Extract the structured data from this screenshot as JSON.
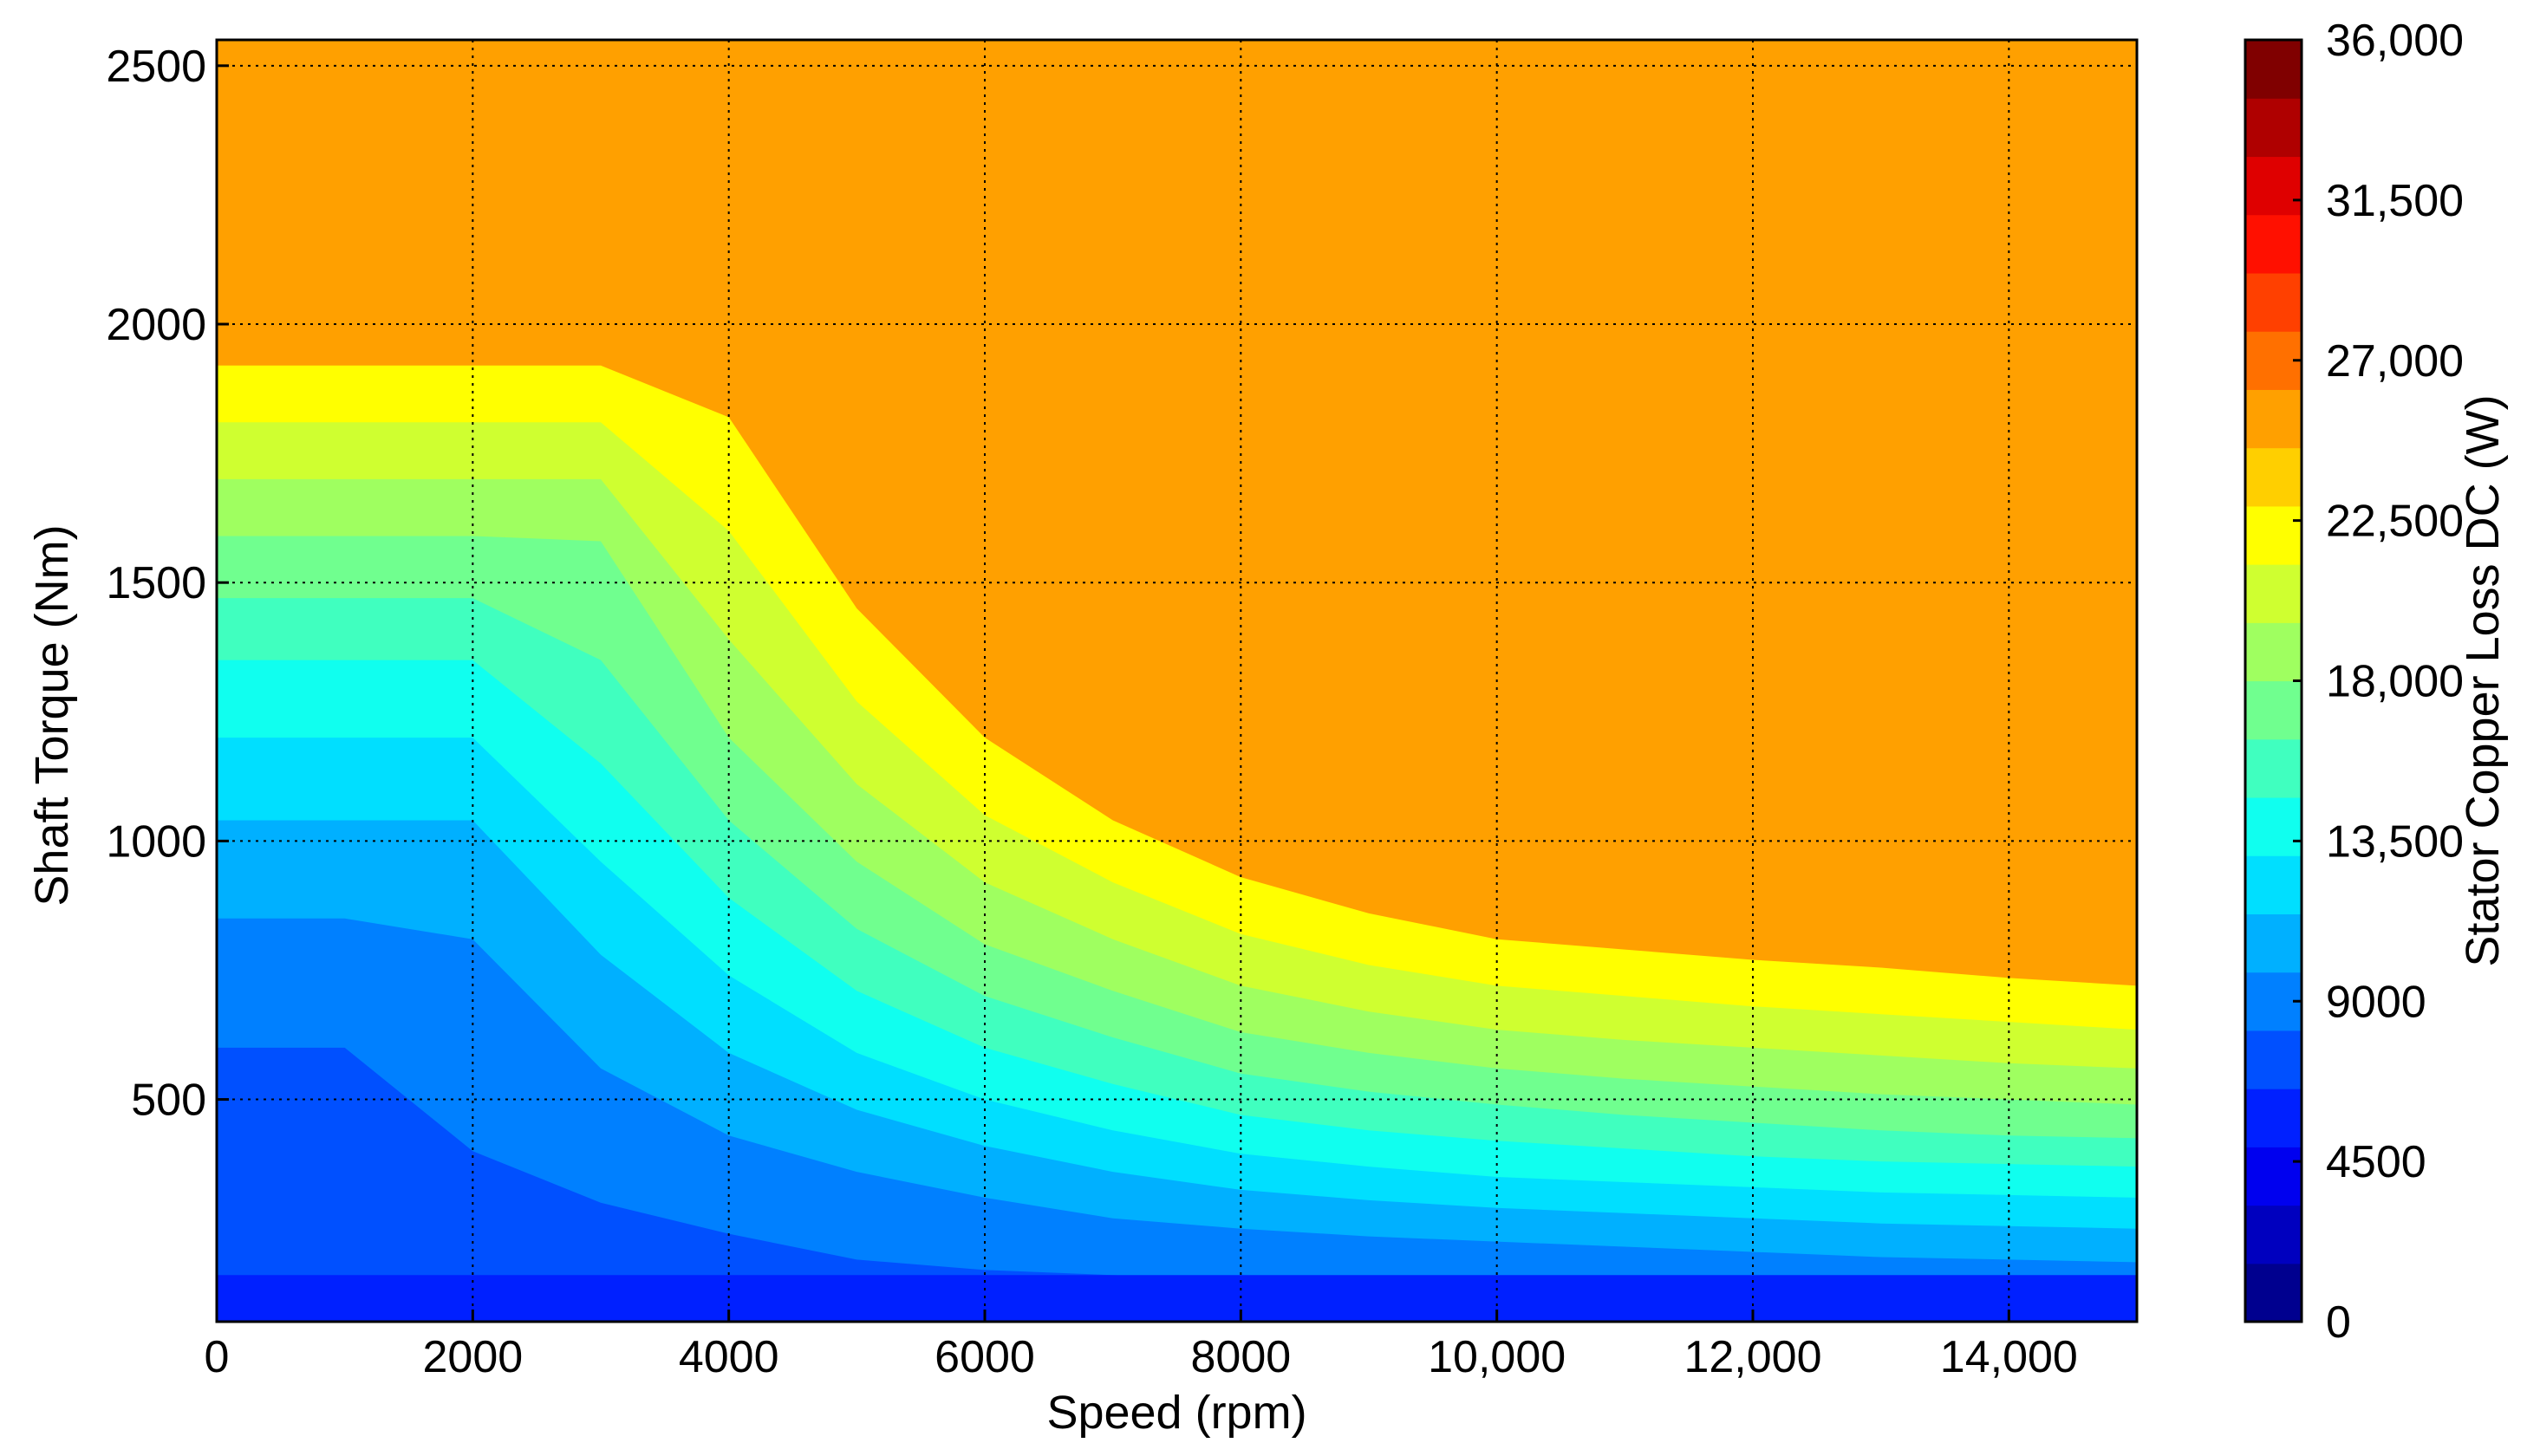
{
  "chart_data": {
    "type": "heatmap",
    "subtype": "filled-contour",
    "title": "",
    "xlabel": "Speed  (rpm)",
    "ylabel": "Shaft Torque  (Nm)",
    "xlim": [
      0,
      15000
    ],
    "ylim": [
      70,
      2550
    ],
    "xticks": [
      0,
      2000,
      4000,
      6000,
      8000,
      10000,
      12000,
      14000
    ],
    "xtick_labels": [
      "0",
      "2000",
      "4000",
      "6000",
      "8000",
      "10,000",
      "12,000",
      "14,000"
    ],
    "yticks": [
      500,
      1000,
      1500,
      2000,
      2500
    ],
    "ytick_labels": [
      "500",
      "1000",
      "1500",
      "2000",
      "2500"
    ],
    "grid": "dotted",
    "colormap": "jet",
    "colorbar": {
      "label": "Stator Copper Loss DC (W)",
      "min": 0,
      "max": 36000,
      "level_step": 2250,
      "ticks": [
        0,
        4500,
        9000,
        13500,
        18000,
        22500,
        27000,
        31500,
        36000
      ],
      "tick_labels": [
        "0",
        "4500",
        "9000",
        "13,500",
        "18,000",
        "22,500",
        "27,000",
        "31,500",
        "36,000"
      ],
      "colors": [
        "#00008f",
        "#0000bf",
        "#0000ef",
        "#0020ff",
        "#0050ff",
        "#0080ff",
        "#00b0ff",
        "#00dfff",
        "#10ffef",
        "#40ffbf",
        "#70ff8f",
        "#9fff60",
        "#cfff30",
        "#ffff00",
        "#ffcf00",
        "#ffa000",
        "#ff7000",
        "#ff4000",
        "#ff1000",
        "#df0000",
        "#af0000",
        "#800000"
      ]
    },
    "speed_rpm": [
      0,
      1000,
      2000,
      3000,
      4000,
      5000,
      6000,
      7000,
      8000,
      9000,
      10000,
      11000,
      12000,
      13000,
      14000,
      15000
    ],
    "contour_levels_W": [
      2250,
      4500,
      6750,
      9000,
      11250,
      13500,
      15750,
      18000,
      20250,
      22500,
      24750
    ],
    "level_torque_Nm": [
      [
        160,
        160,
        160,
        160,
        160,
        160,
        160,
        160,
        160,
        160,
        160,
        160,
        160,
        160,
        160,
        160
      ],
      [
        600,
        600,
        400,
        300,
        240,
        190,
        170,
        160,
        150,
        140,
        135,
        130,
        120,
        120,
        115,
        110
      ],
      [
        850,
        850,
        810,
        560,
        430,
        360,
        310,
        270,
        250,
        235,
        225,
        215,
        205,
        195,
        190,
        185
      ],
      [
        1040,
        1040,
        1040,
        780,
        590,
        480,
        410,
        360,
        325,
        305,
        290,
        280,
        270,
        260,
        255,
        250
      ],
      [
        1200,
        1200,
        1200,
        960,
        740,
        590,
        500,
        440,
        395,
        370,
        350,
        340,
        330,
        320,
        315,
        310
      ],
      [
        1350,
        1350,
        1350,
        1150,
        890,
        710,
        600,
        530,
        470,
        440,
        420,
        405,
        390,
        380,
        375,
        370
      ],
      [
        1470,
        1470,
        1470,
        1350,
        1040,
        830,
        700,
        620,
        550,
        515,
        490,
        470,
        455,
        440,
        430,
        425
      ],
      [
        1590,
        1590,
        1590,
        1580,
        1200,
        960,
        800,
        710,
        630,
        590,
        560,
        540,
        525,
        510,
        500,
        490
      ],
      [
        1700,
        1700,
        1700,
        1700,
        1390,
        1110,
        920,
        810,
        720,
        670,
        635,
        615,
        600,
        585,
        570,
        560
      ],
      [
        1810,
        1810,
        1810,
        1810,
        1600,
        1270,
        1050,
        920,
        820,
        760,
        720,
        700,
        680,
        665,
        650,
        635
      ],
      [
        1920,
        1920,
        1920,
        1920,
        1820,
        1450,
        1200,
        1040,
        930,
        860,
        810,
        790,
        770,
        755,
        735,
        720
      ]
    ]
  }
}
